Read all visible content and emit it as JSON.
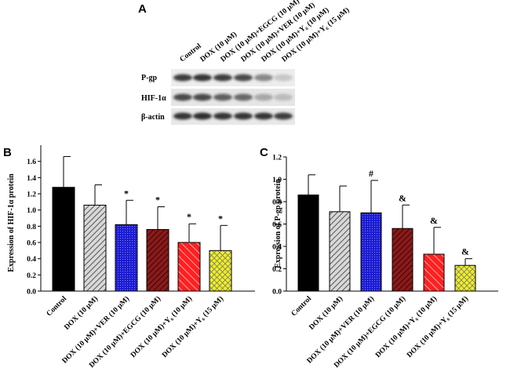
{
  "panel_a": {
    "letter": "A",
    "lane_labels": [
      "Control",
      "DOX (10 μM)",
      "DOX (10 μM)+EGCG (10 μM)",
      "DOX (10 μM)+VER (10 μM)",
      "DOX (10 μM)+Y₆ (10 μM)",
      "DOX (10 μM)+Y₆ (15 μM)"
    ],
    "blots": [
      {
        "label": "P-gp",
        "band_intensity": [
          0.8,
          0.85,
          0.8,
          0.75,
          0.45,
          0.15
        ]
      },
      {
        "label": "HIF-1α",
        "band_intensity": [
          0.75,
          0.75,
          0.65,
          0.6,
          0.3,
          0.2
        ]
      },
      {
        "label": "β-actin",
        "band_intensity": [
          0.85,
          0.88,
          0.85,
          0.85,
          0.85,
          0.8
        ]
      }
    ]
  },
  "chart_data": [
    {
      "type": "bar",
      "panel": "B",
      "ylabel": "Expression of HIF-1α  protein",
      "ylim": [
        0,
        1.8
      ],
      "yticks": [
        "0.0",
        "0.2",
        "0.4",
        "0.6",
        "0.8",
        "1.0",
        "1.2",
        "1.4",
        "1.6"
      ],
      "categories": [
        "Control",
        "DOX (10 μM)",
        "DOX (10 μM)+VER (10 μM)",
        "DOX (10 μM)+EGCG (10 μM)",
        "DOX (10 μM)+Y₆ (10 μM)",
        "DOX (10 μM)+Y₆ (15 μM)"
      ],
      "values": [
        1.28,
        1.06,
        0.82,
        0.76,
        0.6,
        0.5
      ],
      "errors": [
        0.38,
        0.25,
        0.3,
        0.28,
        0.23,
        0.31
      ],
      "annotations": [
        "",
        "",
        "*",
        "*",
        "*",
        "*"
      ],
      "bar_colors": [
        "#000000",
        "#9a9a9a",
        "#1c1cd0",
        "#8b1a1a",
        "#ff2020",
        "#f0f020"
      ],
      "bar_patterns": [
        "solid",
        "hatch",
        "dots",
        "hatch",
        "hatch",
        "cross"
      ]
    },
    {
      "type": "bar",
      "panel": "C",
      "ylabel": "Expression of P-gp protein",
      "ylim": [
        0,
        1.2
      ],
      "yticks": [
        "0.0",
        "0.2",
        "0.4",
        "0.6",
        "0.8",
        "1.0",
        "1.2"
      ],
      "categories": [
        "Control",
        "DOX (10 μM)",
        "DOX (10 μM)+VER (10 μM)",
        "DOX (10 μM)+EGCG (10 μM)",
        "DOX (10 μM)+Y₆ (10 μM)",
        "DOX (10 μM)+Y₆ (15 μM)"
      ],
      "values": [
        0.86,
        0.71,
        0.7,
        0.56,
        0.33,
        0.23
      ],
      "errors": [
        0.18,
        0.23,
        0.29,
        0.21,
        0.24,
        0.06
      ],
      "annotations": [
        "",
        "",
        "#",
        "&",
        "&",
        "&"
      ],
      "bar_colors": [
        "#000000",
        "#9a9a9a",
        "#1c1cd0",
        "#8b1a1a",
        "#ff2020",
        "#f0f020"
      ],
      "bar_patterns": [
        "solid",
        "hatch",
        "dots",
        "hatch",
        "hatch",
        "cross"
      ]
    }
  ]
}
